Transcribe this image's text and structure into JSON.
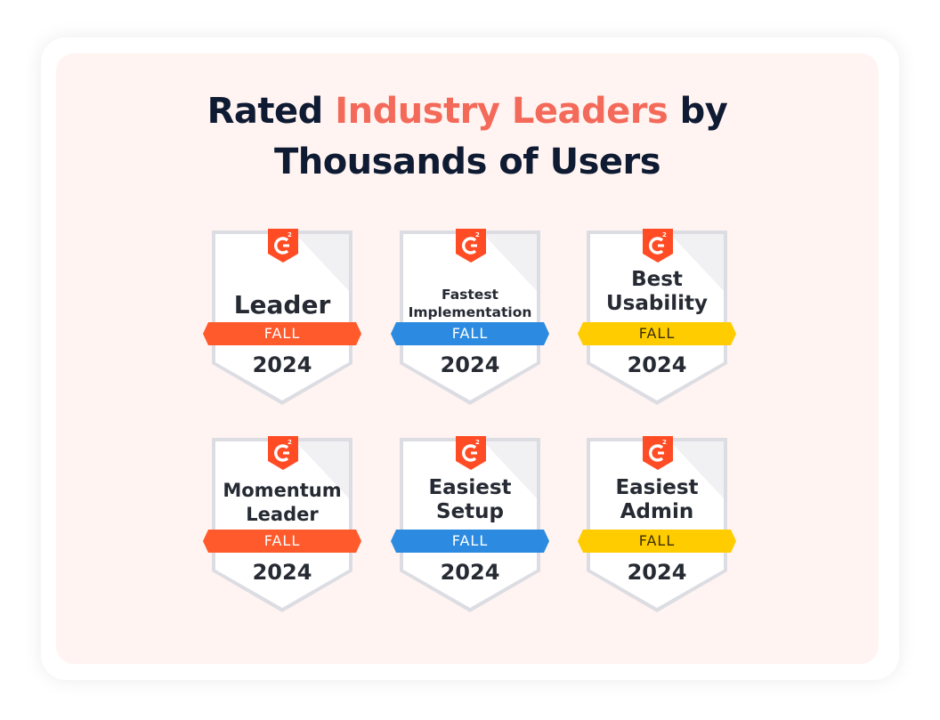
{
  "headline": {
    "part1": "Rated ",
    "accent": "Industry Leaders",
    "part2": " by",
    "line2": "Thousands of Users"
  },
  "logo_label": "G2",
  "colors": {
    "accent": "#f46a5a",
    "red_ribbon": "#ff5a2c",
    "blue_ribbon": "#2c8be0",
    "yellow_ribbon": "#ffcc00",
    "logo": "#ff4c25"
  },
  "badges": [
    {
      "title": "Leader",
      "season": "FALL",
      "year": "2024",
      "ribbon": "red"
    },
    {
      "title": "Fastest Implementation",
      "title_line1": "Fastest",
      "title_line2": "Implementation",
      "season": "FALL",
      "year": "2024",
      "ribbon": "blue"
    },
    {
      "title": "Best Usability",
      "title_line1": "Best",
      "title_line2": "Usability",
      "season": "FALL",
      "year": "2024",
      "ribbon": "yellow"
    },
    {
      "title": "Momentum Leader",
      "title_line1": "Momentum",
      "title_line2": "Leader",
      "season": "FALL",
      "year": "2024",
      "ribbon": "red"
    },
    {
      "title": "Easiest Setup",
      "title_line1": "Easiest",
      "title_line2": "Setup",
      "season": "FALL",
      "year": "2024",
      "ribbon": "blue"
    },
    {
      "title": "Easiest Admin",
      "title_line1": "Easiest",
      "title_line2": "Admin",
      "season": "FALL",
      "year": "2024",
      "ribbon": "yellow"
    }
  ]
}
